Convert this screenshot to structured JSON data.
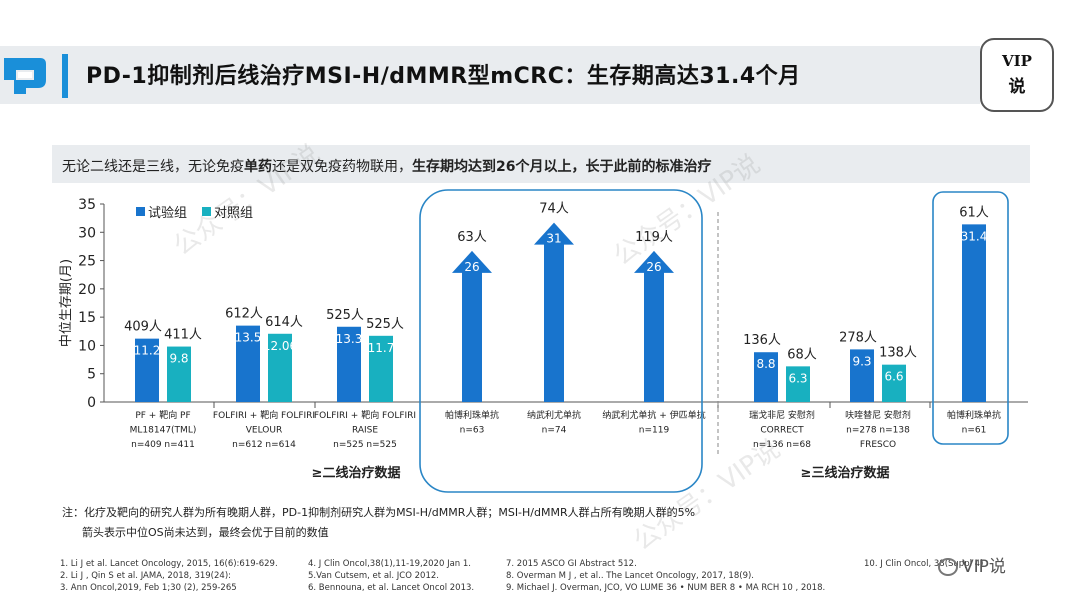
{
  "header": {
    "title": "PD-1抑制剂后线治疗MSI-H/dMMR型mCRC：生存期高达31.4个月",
    "badge_line1": "VIP",
    "badge_line2": "说"
  },
  "subtitle": {
    "part1": "无论二线还是三线，无论免疫",
    "part2_bold": "单药",
    "part3": "还是双免疫药物联用，",
    "part4_bold": "生存期均达到26个月以上，长于此前的标准治疗"
  },
  "watermarks": [
    "公众号：VIP说",
    "公众号：VIP说",
    "公众号：VIP说",
    "公众号：VIP说"
  ],
  "colors": {
    "trial": "#1874cd",
    "control": "#18b0c0",
    "accent": "#1a8fd9",
    "frame": "#2a86c6"
  },
  "chart_data": {
    "type": "bar",
    "ylabel": "中位生存期(月)",
    "ylim": [
      0,
      35
    ],
    "yticks": [
      "0",
      "5",
      "10",
      "15",
      "20",
      "25",
      "30",
      "35"
    ],
    "legend": {
      "position": "top-left",
      "items": [
        {
          "name": "试验组",
          "color": "#1874cd"
        },
        {
          "name": "对照组",
          "color": "#18b0c0"
        }
      ]
    },
    "groups": [
      {
        "label_lines": [
          "PF + 靶向  PF",
          "ML18147(TML)",
          "n=409 n=411"
        ],
        "bars": [
          {
            "series": "试验组",
            "value": 11.2,
            "label": "11.2",
            "n": "409人"
          },
          {
            "series": "对照组",
            "value": 9.8,
            "label": "9.8",
            "n": "411人"
          }
        ]
      },
      {
        "label_lines": [
          "FOLFIRI + 靶向 FOLFIRI",
          "VELOUR",
          "n=612 n=614"
        ],
        "bars": [
          {
            "series": "试验组",
            "value": 13.5,
            "label": "13.5",
            "n": "612人"
          },
          {
            "series": "对照组",
            "value": 12.06,
            "label": "12.06",
            "n": "614人"
          }
        ]
      },
      {
        "label_lines": [
          "FOLFIRI + 靶向 FOLFIRI",
          "RAISE",
          "n=525 n=525"
        ],
        "bars": [
          {
            "series": "试验组",
            "value": 13.3,
            "label": "13.3",
            "n": "525人"
          },
          {
            "series": "对照组",
            "value": 11.7,
            "label": "11.7",
            "n": "525人"
          }
        ]
      },
      {
        "label_lines": [
          "帕博利珠单抗",
          "n=63"
        ],
        "bars": [
          {
            "series": "试验组",
            "value": 26,
            "label": "26",
            "n": "63人",
            "arrow": true
          }
        ]
      },
      {
        "label_lines": [
          "纳武利尤单抗",
          "n=74"
        ],
        "bars": [
          {
            "series": "试验组",
            "value": 31,
            "label": "31",
            "n": "74人",
            "arrow": true
          }
        ]
      },
      {
        "label_lines": [
          "纳武利尤单抗 + 伊匹单抗",
          "n=119"
        ],
        "bars": [
          {
            "series": "试验组",
            "value": 26,
            "label": "26",
            "n": "119人",
            "arrow": true
          }
        ]
      },
      {
        "label_lines": [
          "瑞戈非尼 安慰剂",
          "CORRECT",
          "n=136 n=68"
        ],
        "bars": [
          {
            "series": "试验组",
            "value": 8.8,
            "label": "8.8",
            "n": "136人"
          },
          {
            "series": "对照组",
            "value": 6.3,
            "label": "6.3",
            "n": "68人"
          }
        ]
      },
      {
        "label_lines": [
          "呋喹替尼 安慰剂",
          "n=278 n=138",
          "FRESCO"
        ],
        "bars": [
          {
            "series": "试验组",
            "value": 9.3,
            "label": "9.3",
            "n": "278人"
          },
          {
            "series": "对照组",
            "value": 6.6,
            "label": "6.6",
            "n": "138人"
          }
        ]
      },
      {
        "label_lines": [
          "帕博利珠单抗",
          "n=61"
        ],
        "bars": [
          {
            "series": "试验组",
            "value": 31.4,
            "label": "31.4",
            "n": "61人"
          }
        ]
      }
    ],
    "section_labels": [
      "≥二线治疗数据",
      "≥三线治疗数据"
    ]
  },
  "notes": {
    "line1": "注：化疗及靶向的研究人群为所有晚期人群，PD-1抑制剂研究人群为MSI-H/dMMR人群；MSI-H/dMMR人群占所有晚期人群的5%",
    "line2": "箭头表示中位OS尚未达到，最终会优于目前的数值"
  },
  "references": [
    [
      "1. Li J et al. Lancet Oncology, 2015, 16(6):619-629.",
      "2. Li J , Qin S et al. JAMA, 2018, 319(24):",
      "3. Ann Oncol,2019, Feb 1;30 (2), 259-265"
    ],
    [
      "4. J Clin Oncol,38(1),11-19,2020 Jan 1.",
      "5.Van Cutsem, et al. JCO 2012.",
      "6. Bennouna, et al. Lancet Oncol 2013."
    ],
    [
      "7. 2015 ASCO GI Abstract 512.",
      "8. Overman M J , et al.. The Lancet Oncology, 2017, 18(9).",
      "9. Michael J. Overman, JCO, VO LUME 36 • NUM BER 8 • MA RCH 10 , 2018."
    ],
    [
      "10. J Clin Oncol, 38(Suppl 4)"
    ]
  ],
  "wechat_mark": "VIP说"
}
